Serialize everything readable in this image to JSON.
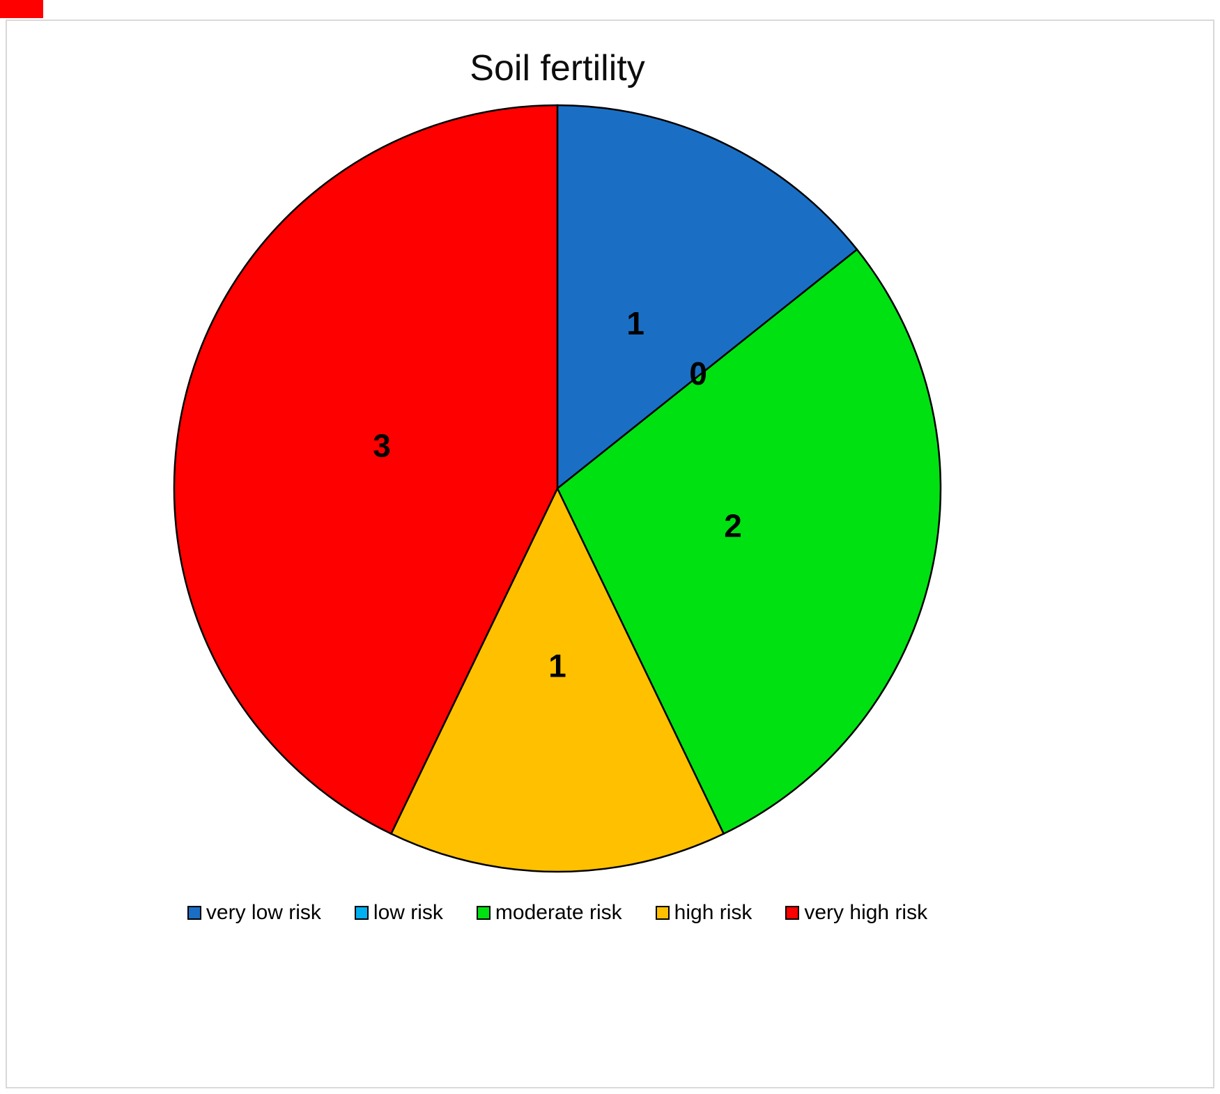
{
  "chart": {
    "title": "Soil fertility"
  },
  "chart_data": {
    "type": "pie",
    "title": "Soil fertility",
    "categories": [
      "very low risk",
      "low risk",
      "moderate risk",
      "high risk",
      "very high risk"
    ],
    "values": [
      1,
      0,
      2,
      1,
      3
    ],
    "data_labels": [
      "1",
      "0",
      "2",
      "1",
      "3"
    ],
    "colors": [
      "#1a6fc4",
      "#00b0f0",
      "#00e112",
      "#ffc000",
      "#ff0000"
    ],
    "slice_outline_color": "#000000",
    "legend_position": "bottom",
    "start_angle_deg": 0,
    "direction": "clockwise",
    "total": 7
  }
}
